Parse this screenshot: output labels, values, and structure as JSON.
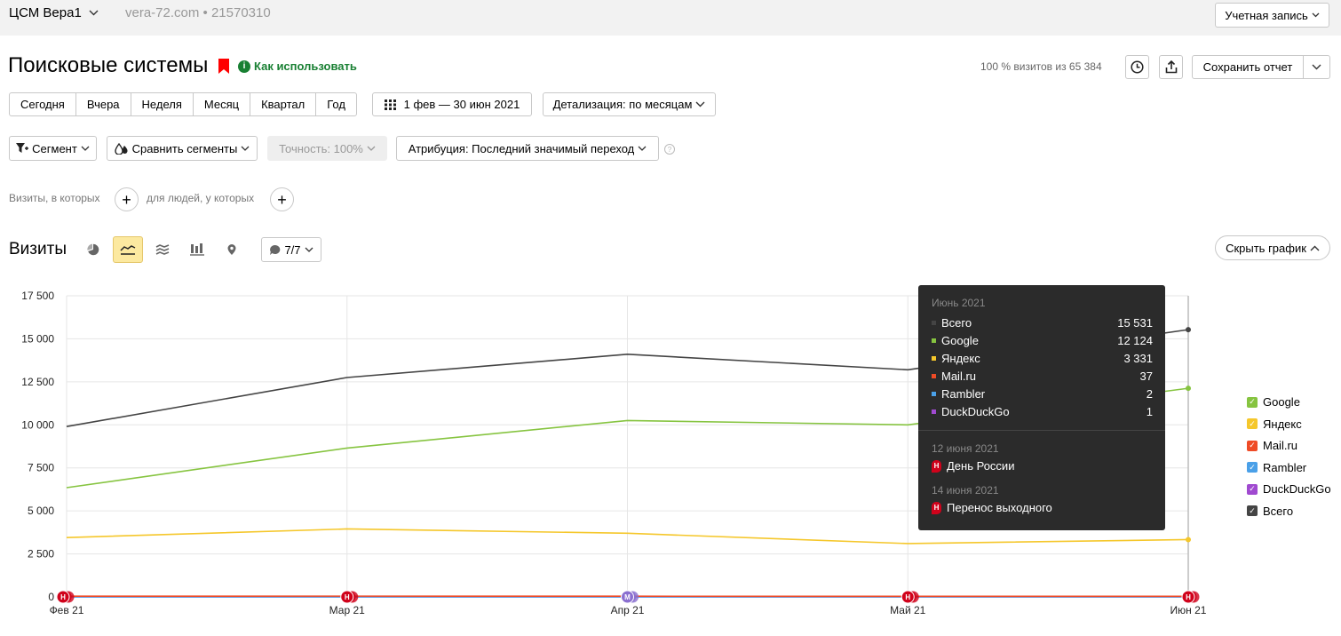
{
  "topbar": {
    "counter_name": "ЦСМ Вера1",
    "counter_meta": "vera-72.com • 21570310",
    "account_label": "Учетная запись"
  },
  "header": {
    "title": "Поисковые системы",
    "howto_label": "Как использовать",
    "visits_share": "100 % визитов из 65 384",
    "save_report_label": "Сохранить отчет"
  },
  "periods": [
    "Сегодня",
    "Вчера",
    "Неделя",
    "Месяц",
    "Квартал",
    "Год"
  ],
  "date_range": "1 фев — 30 июн 2021",
  "detail_label": "Детализация: по месяцам",
  "filters": {
    "segment": "Сегмент",
    "compare": "Сравнить сегменты",
    "accuracy": "Точность: 100%",
    "attribution": "Атрибуция: Последний значимый переход",
    "help": "?"
  },
  "conditions": {
    "visits_label": "Визиты, в которых",
    "people_label": "для людей, у которых",
    "plus": "+"
  },
  "chart_header": {
    "title": "Визиты",
    "notes_label": "7/7",
    "hide_label": "Скрыть график"
  },
  "tooltip": {
    "month": "Июнь 2021",
    "rows": [
      {
        "name": "Всего",
        "value": "15 531",
        "color": "#444444"
      },
      {
        "name": "Google",
        "value": "12 124",
        "color": "#86c440"
      },
      {
        "name": "Яндекс",
        "value": "3 331",
        "color": "#f5c72b"
      },
      {
        "name": "Mail.ru",
        "value": "37",
        "color": "#ef4b26"
      },
      {
        "name": "Rambler",
        "value": "2",
        "color": "#4aa0e8"
      },
      {
        "name": "DuckDuckGo",
        "value": "1",
        "color": "#a04ad0"
      }
    ],
    "holidays": [
      {
        "date": "12 июня 2021",
        "name": "День России",
        "badge": "Н"
      },
      {
        "date": "14 июня 2021",
        "name": "Перенос выходного",
        "badge": "Н"
      }
    ]
  },
  "legend": [
    {
      "name": "Google",
      "color": "#86c440"
    },
    {
      "name": "Яндекс",
      "color": "#f5c72b"
    },
    {
      "name": "Mail.ru",
      "color": "#ef4b26"
    },
    {
      "name": "Rambler",
      "color": "#4aa0e8"
    },
    {
      "name": "DuckDuckGo",
      "color": "#a04ad0"
    },
    {
      "name": "Всего",
      "color": "#444444"
    }
  ],
  "chart_data": {
    "type": "line",
    "x": [
      "Фев 21",
      "Мар 21",
      "Апр 21",
      "Май 21",
      "Июн 21"
    ],
    "ylim": [
      0,
      17500
    ],
    "yticks": [
      "0",
      "2 500",
      "5 000",
      "7 500",
      "10 000",
      "12 500",
      "15 000",
      "17 500"
    ],
    "ytick_values": [
      0,
      2500,
      5000,
      7500,
      10000,
      12500,
      15000,
      17500
    ],
    "grid": true,
    "legend_position": "right",
    "series": [
      {
        "name": "Всего",
        "color": "#444444",
        "values": [
          9900,
          12750,
          14100,
          13200,
          15531
        ]
      },
      {
        "name": "Google",
        "color": "#86c440",
        "values": [
          6350,
          8650,
          10250,
          10000,
          12124
        ]
      },
      {
        "name": "Яндекс",
        "color": "#f5c72b",
        "values": [
          3450,
          3950,
          3700,
          3100,
          3331
        ]
      },
      {
        "name": "Mail.ru",
        "color": "#ef4b26",
        "values": [
          40,
          45,
          40,
          35,
          37
        ]
      },
      {
        "name": "Rambler",
        "color": "#4aa0e8",
        "values": [
          3,
          3,
          2,
          2,
          2
        ]
      },
      {
        "name": "DuckDuckGo",
        "color": "#a04ad0",
        "values": [
          1,
          1,
          1,
          1,
          1
        ]
      }
    ],
    "markers": [
      {
        "x_index": 0,
        "label": "Н",
        "color": "#d0021b"
      },
      {
        "x_index": 1,
        "label": "Н",
        "color": "#d0021b"
      },
      {
        "x_index": 2,
        "label": "М",
        "color": "#8a6fd0"
      },
      {
        "x_index": 3,
        "label": "Н",
        "color": "#d0021b"
      },
      {
        "x_index": 4,
        "label": "Н",
        "color": "#d0021b"
      }
    ]
  }
}
